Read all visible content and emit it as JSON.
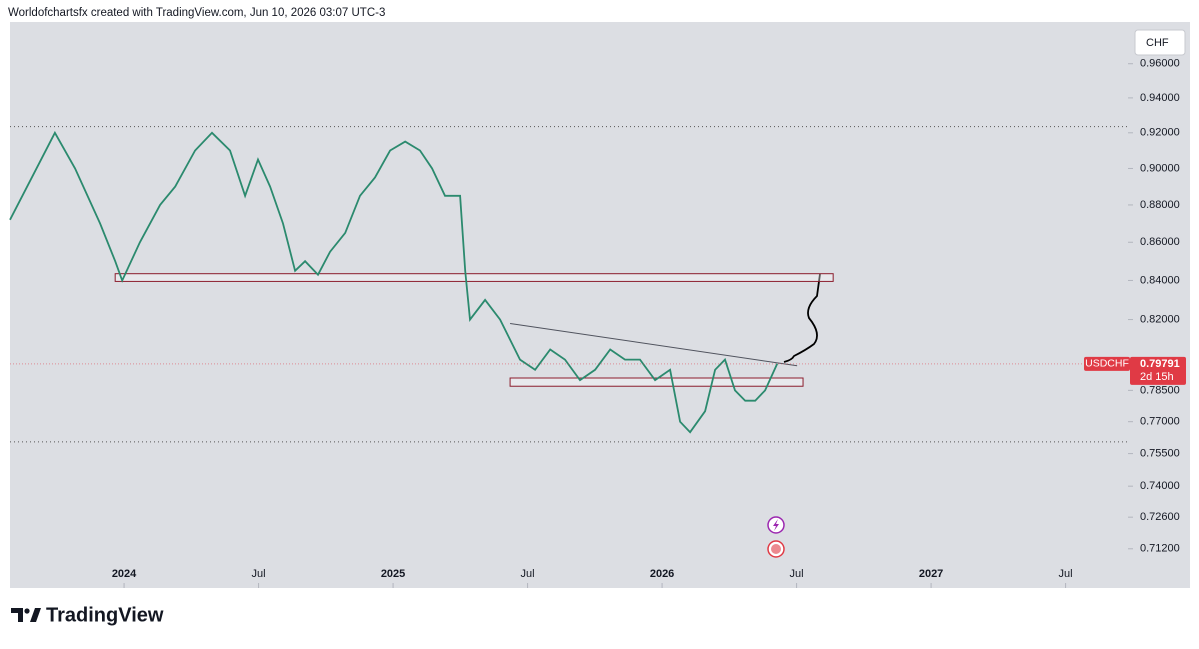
{
  "header": {
    "credit": "Worldofchartsfx created with TradingView.com, Jun 10, 2026 03:07 UTC-3"
  },
  "footer": {
    "brand": "TradingView"
  },
  "chart_data": {
    "type": "line",
    "currency": "CHF",
    "log_scale": true,
    "xlim": [
      2023.576,
      2027.732
    ],
    "xticks": [
      {
        "value": 2024,
        "label": "2024"
      },
      {
        "value": 2024.5,
        "label": "Jul"
      },
      {
        "value": 2025,
        "label": "2025"
      },
      {
        "value": 2025.5,
        "label": "Jul"
      },
      {
        "value": 2026,
        "label": "2026"
      },
      {
        "value": 2026.5,
        "label": "Jul"
      },
      {
        "value": 2027,
        "label": "2027"
      },
      {
        "value": 2027.5,
        "label": "Jul"
      }
    ],
    "ylim": [
      0.695,
      0.985
    ],
    "yticks": [
      {
        "value": 0.96,
        "label": "0.96000"
      },
      {
        "value": 0.94,
        "label": "0.94000"
      },
      {
        "value": 0.92,
        "label": "0.92000"
      },
      {
        "value": 0.9,
        "label": "0.90000"
      },
      {
        "value": 0.88,
        "label": "0.88000"
      },
      {
        "value": 0.86,
        "label": "0.86000"
      },
      {
        "value": 0.84,
        "label": "0.84000"
      },
      {
        "value": 0.82,
        "label": "0.82000"
      },
      {
        "value": 0.785,
        "label": "0.78500"
      },
      {
        "value": 0.77,
        "label": "0.77000"
      },
      {
        "value": 0.755,
        "label": "0.75500"
      },
      {
        "value": 0.74,
        "label": "0.74000"
      },
      {
        "value": 0.726,
        "label": "0.72600"
      },
      {
        "value": 0.712,
        "label": "0.71200"
      }
    ],
    "x": [
      2023.576,
      2023.743,
      2023.818,
      2023.911,
      2023.967,
      2023.993,
      2024.059,
      2024.134,
      2024.19,
      2024.264,
      2024.327,
      2024.394,
      2024.45,
      2024.498,
      2024.543,
      2024.591,
      2024.636,
      2024.673,
      2024.721,
      2024.766,
      2024.822,
      2024.877,
      2024.933,
      2024.989,
      2025.045,
      2025.1,
      2025.145,
      2025.193,
      2025.249,
      2025.268,
      2025.286,
      2025.342,
      2025.398,
      2025.472,
      2025.528,
      2025.584,
      2025.639,
      2025.695,
      2025.751,
      2025.807,
      2025.862,
      2025.918,
      2025.974,
      2026.03,
      2026.067,
      2026.104,
      2026.16,
      2026.197,
      2026.234,
      2026.271,
      2026.309,
      2026.346,
      2026.383,
      2026.428
    ],
    "series": [
      {
        "name": "USDCHF",
        "color": "#2b8a6e",
        "values": [
          0.872,
          0.92,
          0.9,
          0.87,
          0.85,
          0.84,
          0.86,
          0.88,
          0.89,
          0.91,
          0.92,
          0.91,
          0.885,
          0.905,
          0.89,
          0.87,
          0.845,
          0.85,
          0.843,
          0.855,
          0.865,
          0.885,
          0.895,
          0.91,
          0.915,
          0.91,
          0.9,
          0.885,
          0.885,
          0.845,
          0.82,
          0.83,
          0.82,
          0.8,
          0.795,
          0.805,
          0.8,
          0.79,
          0.795,
          0.805,
          0.8,
          0.8,
          0.79,
          0.795,
          0.77,
          0.765,
          0.775,
          0.795,
          0.8,
          0.785,
          0.78,
          0.78,
          0.785,
          0.798
        ]
      }
    ],
    "last_price": {
      "value": 0.79791,
      "countdown": "2d 15h"
    },
    "zones": [
      {
        "x": [
          2023.967,
          2026.636
        ],
        "y": [
          0.8395,
          0.8435
        ]
      },
      {
        "x": [
          2025.435,
          2026.524
        ],
        "y": [
          0.787,
          0.791
        ]
      }
    ],
    "trendline": {
      "x": [
        2025.435,
        2026.502
      ],
      "y": [
        0.818,
        0.797
      ]
    },
    "dotted_levels": [
      0.9235,
      0.7605
    ],
    "accent_color": "#e03a45"
  }
}
